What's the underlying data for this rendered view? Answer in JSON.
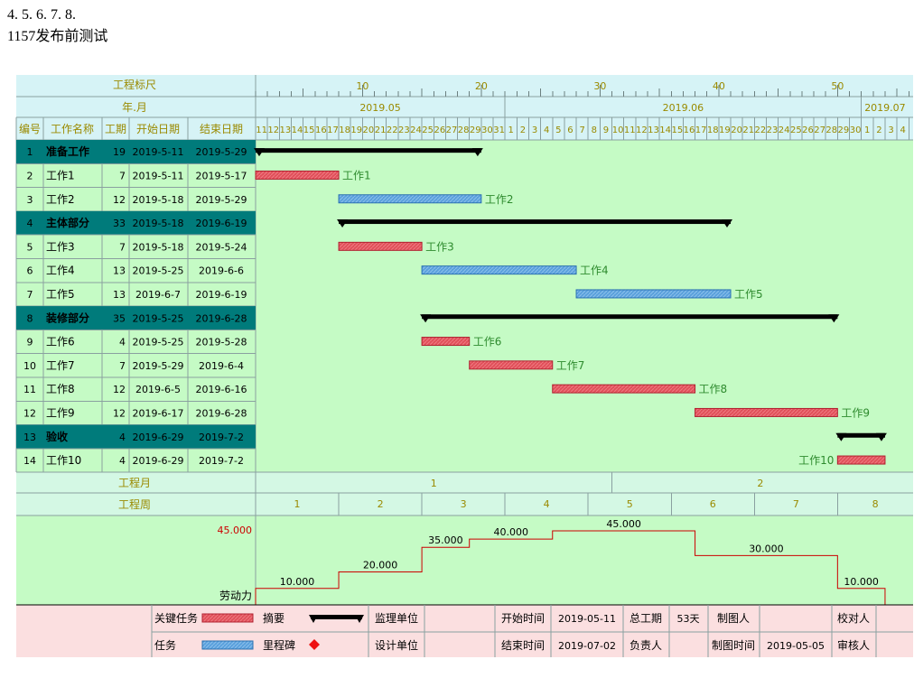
{
  "title": "1157发布前测试",
  "colors": {
    "critical": "#e0505a",
    "normal": "#5aa0dc",
    "summary": "#000000",
    "teal": "#007b7b",
    "chartBg": "#c5fbc5",
    "headerBg": "#d6f3f6",
    "footerBg": "#fbdfe0",
    "bandBg": "#d4f8e4",
    "month": "#1b3bd0",
    "green": "#2e8b2e",
    "red": "#cc0000",
    "olive": "#9a8a00"
  },
  "header": {
    "ruler_label": "工程标尺",
    "ym_label": "年.月",
    "cols": [
      "编号",
      "工作名称",
      "工期",
      "开始日期",
      "结束日期"
    ]
  },
  "ruler_ticks": [
    "10",
    "20",
    "30",
    "40",
    "50"
  ],
  "months": [
    "2019.05",
    "2019.06",
    "2019.07"
  ],
  "day_labels": [
    "11",
    "12",
    "13",
    "14",
    "15",
    "16",
    "17",
    "18",
    "19",
    "20",
    "21",
    "22",
    "23",
    "24",
    "25",
    "26",
    "27",
    "28",
    "29",
    "30",
    "31",
    "1",
    "2",
    "3",
    "4",
    "5",
    "6",
    "7",
    "8",
    "9",
    "10",
    "11",
    "12",
    "13",
    "14",
    "15",
    "16",
    "17",
    "18",
    "19",
    "20",
    "21",
    "22",
    "23",
    "24",
    "25",
    "26",
    "27",
    "28",
    "29",
    "30",
    "1",
    "2",
    "3",
    "4"
  ],
  "tasks": [
    {
      "id": "1",
      "name": "准备工作",
      "dur": "19",
      "start": "2019-5-11",
      "end": "2019-5-29",
      "kind": "summary",
      "s": 0,
      "e": 19
    },
    {
      "id": "2",
      "name": "工作1",
      "dur": "7",
      "start": "2019-5-11",
      "end": "2019-5-17",
      "kind": "critical",
      "s": 0,
      "e": 7
    },
    {
      "id": "3",
      "name": "工作2",
      "dur": "12",
      "start": "2019-5-18",
      "end": "2019-5-29",
      "kind": "normal",
      "s": 7,
      "e": 19
    },
    {
      "id": "4",
      "name": "主体部分",
      "dur": "33",
      "start": "2019-5-18",
      "end": "2019-6-19",
      "kind": "summary",
      "s": 7,
      "e": 40
    },
    {
      "id": "5",
      "name": "工作3",
      "dur": "7",
      "start": "2019-5-18",
      "end": "2019-5-24",
      "kind": "critical",
      "s": 7,
      "e": 14
    },
    {
      "id": "6",
      "name": "工作4",
      "dur": "13",
      "start": "2019-5-25",
      "end": "2019-6-6",
      "kind": "normal",
      "s": 14,
      "e": 27
    },
    {
      "id": "7",
      "name": "工作5",
      "dur": "13",
      "start": "2019-6-7",
      "end": "2019-6-19",
      "kind": "normal",
      "s": 27,
      "e": 40
    },
    {
      "id": "8",
      "name": "装修部分",
      "dur": "35",
      "start": "2019-5-25",
      "end": "2019-6-28",
      "kind": "summary",
      "s": 14,
      "e": 49
    },
    {
      "id": "9",
      "name": "工作6",
      "dur": "4",
      "start": "2019-5-25",
      "end": "2019-5-28",
      "kind": "critical",
      "s": 14,
      "e": 18
    },
    {
      "id": "10",
      "name": "工作7",
      "dur": "7",
      "start": "2019-5-29",
      "end": "2019-6-4",
      "kind": "critical",
      "s": 18,
      "e": 25
    },
    {
      "id": "11",
      "name": "工作8",
      "dur": "12",
      "start": "2019-6-5",
      "end": "2019-6-16",
      "kind": "critical",
      "s": 25,
      "e": 37
    },
    {
      "id": "12",
      "name": "工作9",
      "dur": "12",
      "start": "2019-6-17",
      "end": "2019-6-28",
      "kind": "critical",
      "s": 37,
      "e": 49
    },
    {
      "id": "13",
      "name": "验收",
      "dur": "4",
      "start": "2019-6-29",
      "end": "2019-7-2",
      "kind": "summary",
      "s": 49,
      "e": 53
    },
    {
      "id": "14",
      "name": "工作10",
      "dur": "4",
      "start": "2019-6-29",
      "end": "2019-7-2",
      "kind": "critical",
      "s": 49,
      "e": 53
    }
  ],
  "bands": {
    "month_label": "工程月",
    "week_label": "工程周",
    "month_nums": [
      "1",
      "2"
    ],
    "week_nums": [
      "1",
      "2",
      "3",
      "4",
      "5",
      "6",
      "7",
      "8"
    ]
  },
  "labor": {
    "label": "劳动力",
    "axis_max": "45.000",
    "values": [
      10,
      20,
      35,
      40,
      45,
      30,
      10
    ],
    "labels": [
      "10.000",
      "20.000",
      "35.000",
      "40.000",
      "45.000",
      "30.000",
      "10.000"
    ]
  },
  "legend": {
    "critical": "关键任务",
    "summary": "摘要",
    "normal": "任务",
    "milestone": "里程碑"
  },
  "info": {
    "supervisor_label": "监理单位",
    "supervisor": "",
    "designer_label": "设计单位",
    "designer": "",
    "start_label": "开始时间",
    "start": "2019-05-11",
    "end_label": "结束时间",
    "end": "2019-07-02",
    "total_label": "总工期",
    "total": "53天",
    "owner_label": "负责人",
    "owner": "",
    "drafter_label": "制图人",
    "drafter": "",
    "drawdate_label": "制图时间",
    "drawdate": "2019-05-05",
    "checker_label": "校对人",
    "checker": "",
    "reviewer_label": "审核人",
    "reviewer": ""
  },
  "chart_data": {
    "type": "gantt",
    "title": "1157发布前测试",
    "x_start": "2019-05-11",
    "x_end": "2019-07-04",
    "tasks": [
      {
        "name": "准备工作",
        "start": "2019-05-11",
        "end": "2019-05-29",
        "duration": 19,
        "type": "summary"
      },
      {
        "name": "工作1",
        "start": "2019-05-11",
        "end": "2019-05-17",
        "duration": 7,
        "type": "critical"
      },
      {
        "name": "工作2",
        "start": "2019-05-18",
        "end": "2019-05-29",
        "duration": 12,
        "type": "task"
      },
      {
        "name": "主体部分",
        "start": "2019-05-18",
        "end": "2019-06-19",
        "duration": 33,
        "type": "summary"
      },
      {
        "name": "工作3",
        "start": "2019-05-18",
        "end": "2019-05-24",
        "duration": 7,
        "type": "critical"
      },
      {
        "name": "工作4",
        "start": "2019-05-25",
        "end": "2019-06-06",
        "duration": 13,
        "type": "task"
      },
      {
        "name": "工作5",
        "start": "2019-06-07",
        "end": "2019-06-19",
        "duration": 13,
        "type": "task"
      },
      {
        "name": "装修部分",
        "start": "2019-05-25",
        "end": "2019-06-28",
        "duration": 35,
        "type": "summary"
      },
      {
        "name": "工作6",
        "start": "2019-05-25",
        "end": "2019-05-28",
        "duration": 4,
        "type": "critical"
      },
      {
        "name": "工作7",
        "start": "2019-05-29",
        "end": "2019-06-04",
        "duration": 7,
        "type": "critical"
      },
      {
        "name": "工作8",
        "start": "2019-06-05",
        "end": "2019-06-16",
        "duration": 12,
        "type": "critical"
      },
      {
        "name": "工作9",
        "start": "2019-06-17",
        "end": "2019-06-28",
        "duration": 12,
        "type": "critical"
      },
      {
        "name": "验收",
        "start": "2019-06-29",
        "end": "2019-07-02",
        "duration": 4,
        "type": "summary"
      },
      {
        "name": "工作10",
        "start": "2019-06-29",
        "end": "2019-07-02",
        "duration": 4,
        "type": "critical"
      }
    ],
    "labor_profile": {
      "label": "劳动力",
      "ylim": [
        0,
        45
      ],
      "steps": [
        {
          "start": "2019-05-11",
          "end": "2019-05-17",
          "value": 10
        },
        {
          "start": "2019-05-18",
          "end": "2019-05-24",
          "value": 20
        },
        {
          "start": "2019-05-25",
          "end": "2019-05-28",
          "value": 35
        },
        {
          "start": "2019-05-29",
          "end": "2019-06-04",
          "value": 40
        },
        {
          "start": "2019-06-05",
          "end": "2019-06-16",
          "value": 45
        },
        {
          "start": "2019-06-17",
          "end": "2019-06-28",
          "value": 30
        },
        {
          "start": "2019-06-29",
          "end": "2019-07-02",
          "value": 10
        }
      ]
    }
  }
}
